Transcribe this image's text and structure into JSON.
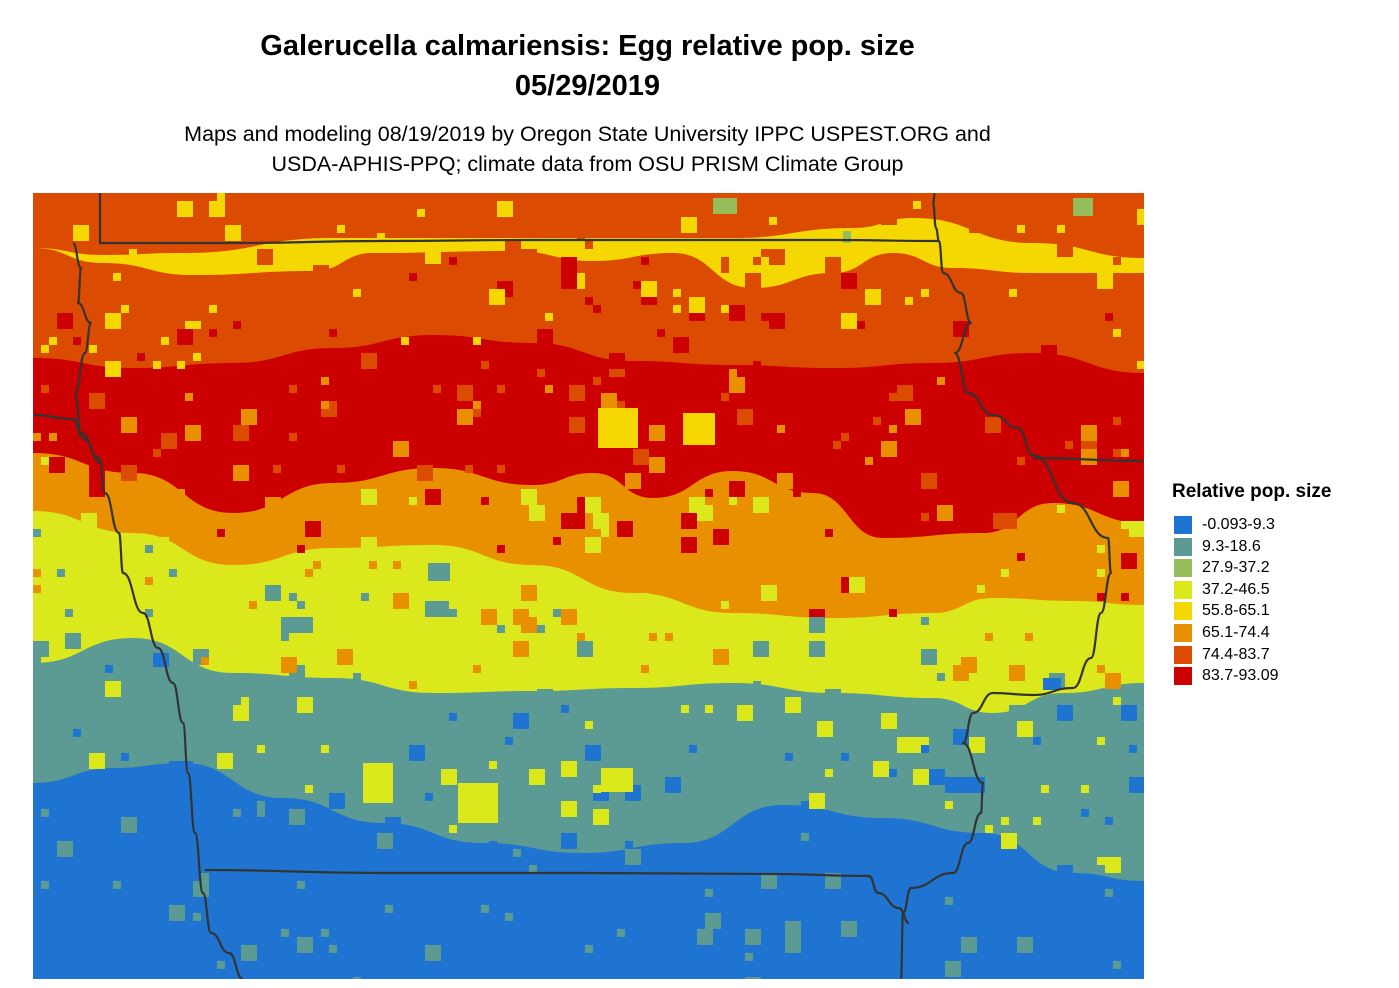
{
  "title_line1": "Galerucella calmariensis: Egg relative pop. size",
  "title_line2": "05/29/2019",
  "subtitle_line1": "Maps and modeling 08/19/2019 by Oregon State University IPPC USPEST.ORG and",
  "subtitle_line2": "USDA-APHIS-PPQ; climate data from OSU PRISM Climate Group",
  "legend": {
    "title": "Relative pop. size",
    "items": [
      {
        "label": "-0.093-9.3",
        "color": "#1e74d0"
      },
      {
        "label": "9.3-18.6",
        "color": "#5b9b93"
      },
      {
        "label": "27.9-37.2",
        "color": "#96bd5c"
      },
      {
        "label": "37.2-46.5",
        "color": "#dbe81c"
      },
      {
        "label": "55.8-65.1",
        "color": "#f5d802"
      },
      {
        "label": "65.1-74.4",
        "color": "#e99001"
      },
      {
        "label": "74.4-83.7",
        "color": "#db4c02"
      },
      {
        "label": "83.7-93.09",
        "color": "#cc0000"
      }
    ]
  },
  "map": {
    "boundary_color": "#333333",
    "zones_north_to_south": [
      "74.4-83.7",
      "55.8-65.1",
      "74.4-83.7",
      "83.7-93.09",
      "65.1-74.4",
      "37.2-46.5",
      "9.3-18.6",
      "-0.093-9.3"
    ]
  }
}
